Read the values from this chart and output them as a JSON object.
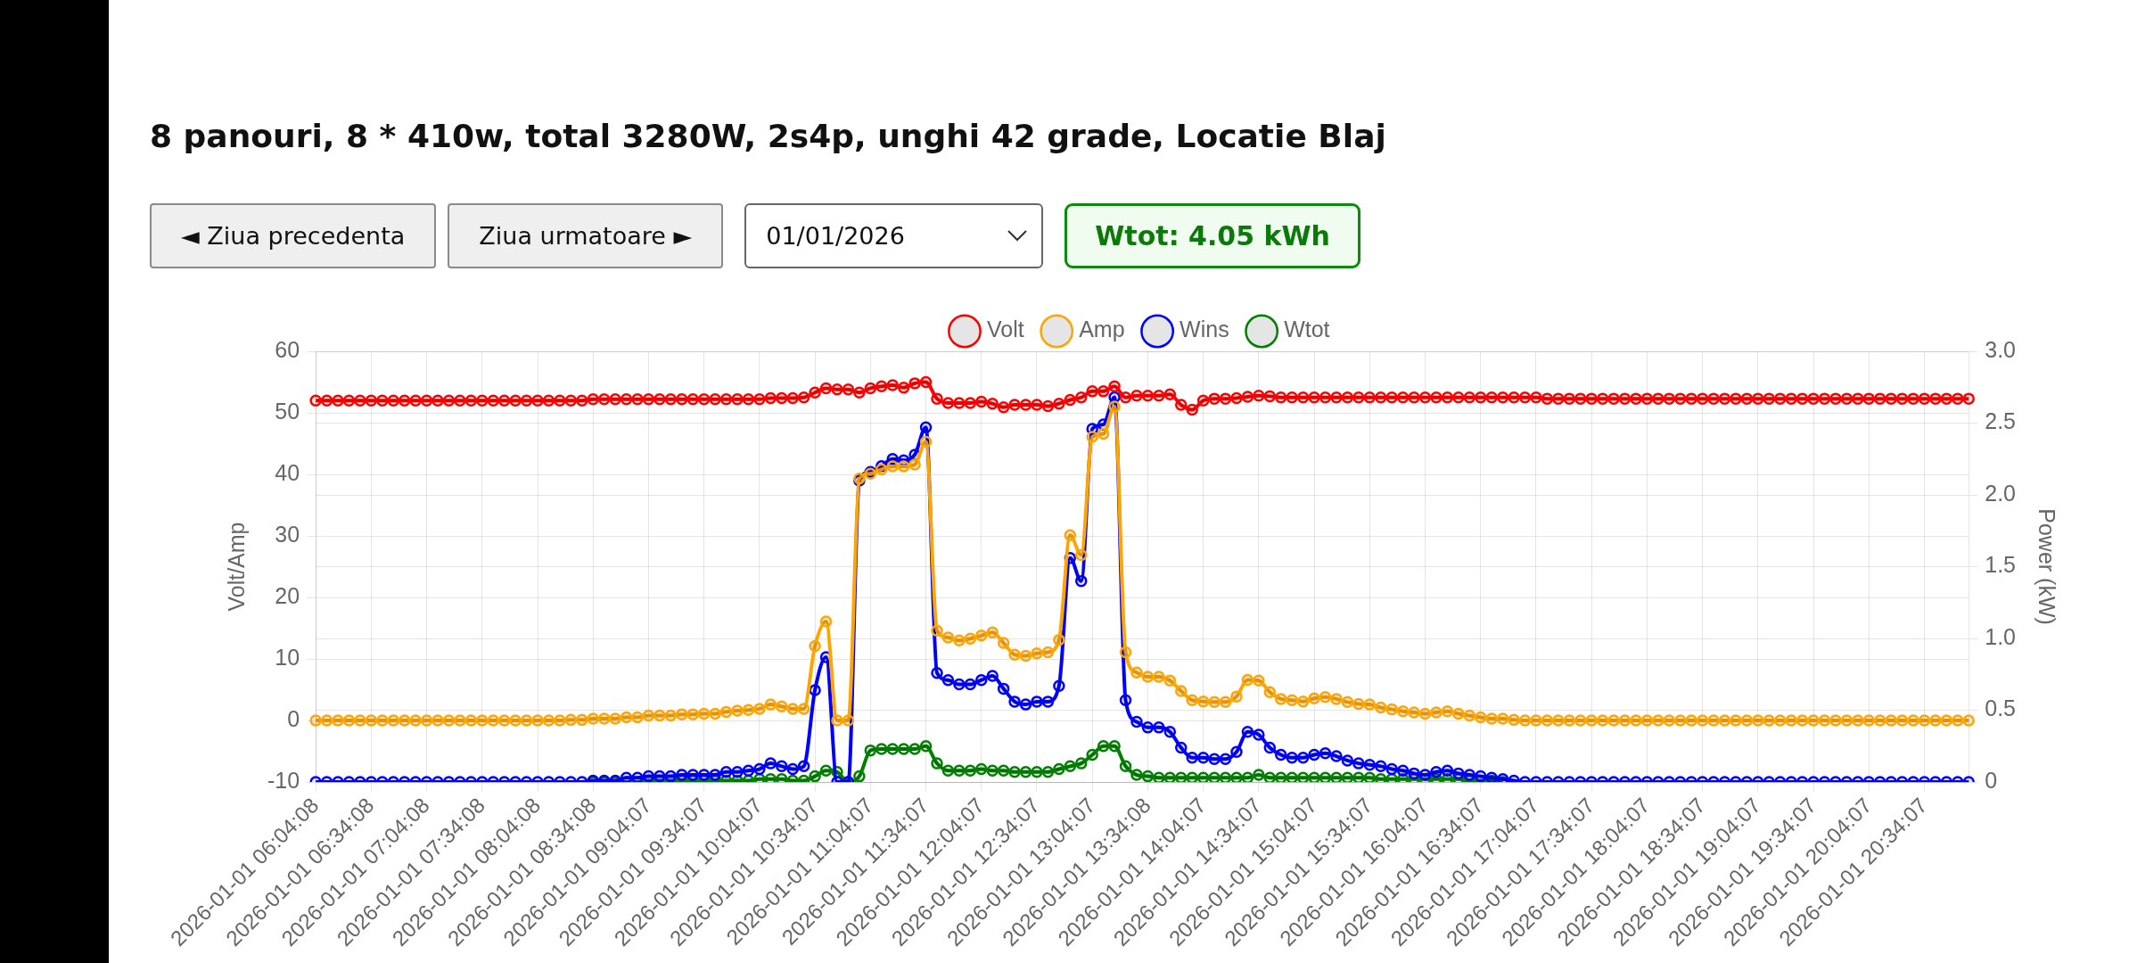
{
  "chart_data": {
    "type": "line",
    "title": "8 panouri, 8 * 410w, total 3280W, 2s4p, unghi 42 grade, Locatie Blaj",
    "ylabel": "Volt/Amp",
    "y2label": "Power (kW)",
    "annotations": [
      "◄ Ziua precedenta",
      "Ziua urmatoare ►",
      "01/01/2026",
      "Wtot: 4.05 kWh"
    ],
    "categories": [
      "2026-01-01 06:04:08",
      null,
      null,
      null,
      null,
      "2026-01-01 06:34:08",
      null,
      null,
      null,
      null,
      "2026-01-01 07:04:08",
      null,
      null,
      null,
      null,
      "2026-01-01 07:34:08",
      null,
      null,
      null,
      null,
      "2026-01-01 08:04:08",
      null,
      null,
      null,
      null,
      "2026-01-01 08:34:08",
      null,
      null,
      null,
      null,
      "2026-01-01 09:04:07",
      null,
      null,
      null,
      null,
      "2026-01-01 09:34:07",
      null,
      null,
      null,
      null,
      "2026-01-01 10:04:07",
      null,
      null,
      null,
      null,
      "2026-01-01 10:34:07",
      null,
      null,
      null,
      null,
      "2026-01-01 11:04:07",
      null,
      null,
      null,
      null,
      "2026-01-01 11:34:07",
      null,
      null,
      null,
      null,
      "2026-01-01 12:04:07",
      null,
      null,
      null,
      null,
      "2026-01-01 12:34:07",
      null,
      null,
      null,
      null,
      "2026-01-01 13:04:07",
      null,
      null,
      null,
      null,
      "2026-01-01 13:34:08",
      null,
      null,
      null,
      null,
      "2026-01-01 14:04:07",
      null,
      null,
      null,
      null,
      "2026-01-01 14:34:07",
      null,
      null,
      null,
      null,
      "2026-01-01 15:04:07",
      null,
      null,
      null,
      null,
      "2026-01-01 15:34:07",
      null,
      null,
      null,
      null,
      "2026-01-01 16:04:07",
      null,
      null,
      null,
      null,
      "2026-01-01 16:34:07",
      null,
      null,
      null,
      null,
      "2026-01-01 17:04:07",
      null,
      null,
      null,
      null,
      "2026-01-01 17:34:07",
      null,
      null,
      null,
      null,
      "2026-01-01 18:04:07",
      null,
      null,
      null,
      null,
      "2026-01-01 18:34:07",
      null,
      null,
      null,
      null,
      "2026-01-01 19:04:07",
      null,
      null,
      null,
      null,
      "2026-01-01 19:34:07",
      null,
      null,
      null,
      null,
      "2026-01-01 20:04:07",
      null,
      null,
      null,
      null,
      "2026-01-01 20:34:07",
      null,
      null,
      null,
      null
    ],
    "series": [
      {
        "name": "Volt",
        "color": "#ff0000",
        "values": [
          52.0,
          52.0,
          52.0,
          52.0,
          52.0,
          52.0,
          52.0,
          52.0,
          52.0,
          52.0,
          52.0,
          52.0,
          52.0,
          52.0,
          52.0,
          52.0,
          52.0,
          52.0,
          52.0,
          52.0,
          52.0,
          52.0,
          52.0,
          52.0,
          52.0,
          52.2,
          52.2,
          52.2,
          52.2,
          52.2,
          52.2,
          52.2,
          52.2,
          52.2,
          52.2,
          52.2,
          52.2,
          52.2,
          52.2,
          52.2,
          52.2,
          52.4,
          52.4,
          52.4,
          52.5,
          53.3,
          54.0,
          53.8,
          53.8,
          53.3,
          54.0,
          54.3,
          54.5,
          54.1,
          54.8,
          55.0,
          52.3,
          51.6,
          51.6,
          51.6,
          51.8,
          51.5,
          50.9,
          51.3,
          51.3,
          51.3,
          51.1,
          51.5,
          52.1,
          52.5,
          53.5,
          53.5,
          54.3,
          52.5,
          52.8,
          52.8,
          52.8,
          53.0,
          51.3,
          50.5,
          52.0,
          52.3,
          52.3,
          52.4,
          52.6,
          52.8,
          52.7,
          52.5,
          52.5,
          52.5,
          52.5,
          52.5,
          52.5,
          52.5,
          52.5,
          52.5,
          52.5,
          52.5,
          52.5,
          52.5,
          52.5,
          52.5,
          52.5,
          52.5,
          52.5,
          52.5,
          52.5,
          52.5,
          52.5,
          52.5,
          52.5,
          52.3,
          52.3,
          52.3,
          52.3,
          52.3,
          52.3,
          52.3,
          52.3,
          52.3,
          52.3,
          52.3,
          52.3,
          52.3,
          52.3,
          52.3,
          52.3,
          52.3,
          52.3,
          52.3,
          52.3,
          52.3,
          52.3,
          52.3,
          52.3,
          52.3,
          52.3,
          52.3,
          52.3,
          52.3,
          52.3,
          52.3,
          52.3,
          52.3,
          52.3,
          52.3,
          52.3,
          52.3,
          52.3,
          52.3
        ]
      },
      {
        "name": "Amp",
        "color": "#ffa500",
        "values": [
          0,
          0,
          0,
          0,
          0,
          0,
          0,
          0,
          0,
          0,
          0,
          0,
          0,
          0,
          0,
          0,
          0,
          0,
          0,
          0,
          0,
          0,
          0,
          0.1,
          0.1,
          0.3,
          0.3,
          0.3,
          0.5,
          0.5,
          0.8,
          0.8,
          0.8,
          1.0,
          1.0,
          1.1,
          1.1,
          1.4,
          1.6,
          1.7,
          1.9,
          2.6,
          2.3,
          1.9,
          1.9,
          12.1,
          16.1,
          0,
          0,
          39.3,
          40.1,
          40.8,
          41.3,
          41.3,
          41.6,
          45.3,
          14.6,
          13.5,
          13.0,
          13.3,
          13.8,
          14.3,
          12.6,
          10.7,
          10.5,
          10.9,
          11.1,
          13.1,
          30.1,
          26.9,
          46.1,
          46.6,
          51.0,
          11.1,
          7.8,
          7.1,
          7.1,
          6.5,
          4.8,
          3.3,
          3.1,
          3.0,
          3.0,
          3.9,
          6.6,
          6.5,
          4.6,
          3.5,
          3.3,
          3.1,
          3.6,
          3.8,
          3.5,
          3.0,
          2.7,
          2.6,
          2.1,
          1.8,
          1.5,
          1.3,
          1.1,
          1.3,
          1.5,
          1.1,
          0.8,
          0.5,
          0.3,
          0.3,
          0.1,
          0,
          0,
          0,
          0,
          0,
          0,
          0,
          0,
          0,
          0,
          0,
          0,
          0,
          0,
          0,
          0,
          0,
          0,
          0,
          0,
          0,
          0,
          0,
          0,
          0,
          0,
          0,
          0,
          0,
          0,
          0,
          0,
          0,
          0,
          0,
          0,
          0,
          0,
          0,
          0,
          0
        ]
      },
      {
        "name": "Wins",
        "color": "#0000ff",
        "axis": "y2",
        "values": [
          0,
          0,
          0,
          0,
          0,
          0,
          0,
          0,
          0,
          0,
          0,
          0,
          0,
          0,
          0,
          0,
          0,
          0,
          0,
          0,
          0,
          0,
          0,
          0,
          0,
          0.01,
          0.01,
          0.01,
          0.03,
          0.03,
          0.04,
          0.04,
          0.04,
          0.05,
          0.05,
          0.05,
          0.05,
          0.07,
          0.07,
          0.08,
          0.09,
          0.13,
          0.11,
          0.09,
          0.11,
          0.64,
          0.87,
          0,
          0,
          2.1,
          2.16,
          2.2,
          2.25,
          2.24,
          2.28,
          2.47,
          0.76,
          0.71,
          0.68,
          0.68,
          0.71,
          0.74,
          0.65,
          0.56,
          0.54,
          0.56,
          0.56,
          0.67,
          1.56,
          1.4,
          2.46,
          2.49,
          2.68,
          0.57,
          0.42,
          0.38,
          0.38,
          0.35,
          0.24,
          0.17,
          0.17,
          0.16,
          0.16,
          0.21,
          0.35,
          0.33,
          0.24,
          0.19,
          0.17,
          0.17,
          0.19,
          0.2,
          0.18,
          0.15,
          0.13,
          0.12,
          0.11,
          0.09,
          0.08,
          0.06,
          0.05,
          0.07,
          0.08,
          0.06,
          0.05,
          0.04,
          0.03,
          0.02,
          0.01,
          0,
          0,
          0,
          0,
          0,
          0,
          0,
          0,
          0,
          0,
          0,
          0,
          0,
          0,
          0,
          0,
          0,
          0,
          0,
          0,
          0,
          0,
          0,
          0,
          0,
          0,
          0,
          0,
          0,
          0,
          0,
          0,
          0,
          0,
          0,
          0,
          0,
          0,
          0,
          0,
          0
        ]
      },
      {
        "name": "Wtot",
        "color": "#008000",
        "axis": "y2",
        "values": [
          null,
          null,
          null,
          null,
          null,
          null,
          null,
          null,
          null,
          null,
          null,
          null,
          null,
          null,
          null,
          null,
          null,
          null,
          null,
          null,
          null,
          null,
          null,
          null,
          null,
          0,
          0,
          0,
          0,
          0,
          0.01,
          0.01,
          0.01,
          0.01,
          0.01,
          0.01,
          0.01,
          0.01,
          0.01,
          0.01,
          0.02,
          0.02,
          0.02,
          0.01,
          0.01,
          0.04,
          0.08,
          0.07,
          0,
          0.04,
          0.22,
          0.23,
          0.23,
          0.23,
          0.23,
          0.25,
          0.13,
          0.08,
          0.08,
          0.08,
          0.09,
          0.08,
          0.08,
          0.07,
          0.07,
          0.07,
          0.07,
          0.09,
          0.11,
          0.13,
          0.19,
          0.25,
          0.25,
          0.11,
          0.05,
          0.04,
          0.03,
          0.03,
          0.03,
          0.03,
          0.03,
          0.03,
          0.03,
          0.03,
          0.03,
          0.05,
          0.03,
          0.03,
          0.03,
          0.03,
          0.03,
          0.03,
          0.03,
          0.03,
          0.03,
          0.03,
          0.02,
          0.02,
          0.02,
          0.02,
          0.02,
          0.02,
          0.02,
          0.02,
          0.01,
          0.01,
          0.01,
          0,
          null,
          null,
          null,
          null,
          null,
          null,
          null,
          null,
          null,
          null,
          null,
          null,
          null,
          null,
          null,
          null,
          null,
          null,
          null,
          null,
          null,
          null,
          null,
          null,
          null,
          null,
          null,
          null,
          null,
          null,
          null,
          null,
          null,
          null,
          null,
          null,
          null,
          null,
          null,
          null,
          null,
          null
        ]
      }
    ],
    "ylim": [
      -10,
      60
    ],
    "yticks": [
      -10,
      0,
      10,
      20,
      30,
      40,
      50,
      60
    ],
    "y2lim": [
      0,
      3
    ],
    "y2ticks": [
      0,
      0.5,
      {
        "value": 1,
        "label": "1.0"
      },
      1.5,
      {
        "value": 2,
        "label": "2.0"
      },
      2.5,
      {
        "value": 3,
        "label": "3.0"
      }
    ],
    "grid": true,
    "legend": "top",
    "marker": "circle",
    "line_style": "solid"
  }
}
